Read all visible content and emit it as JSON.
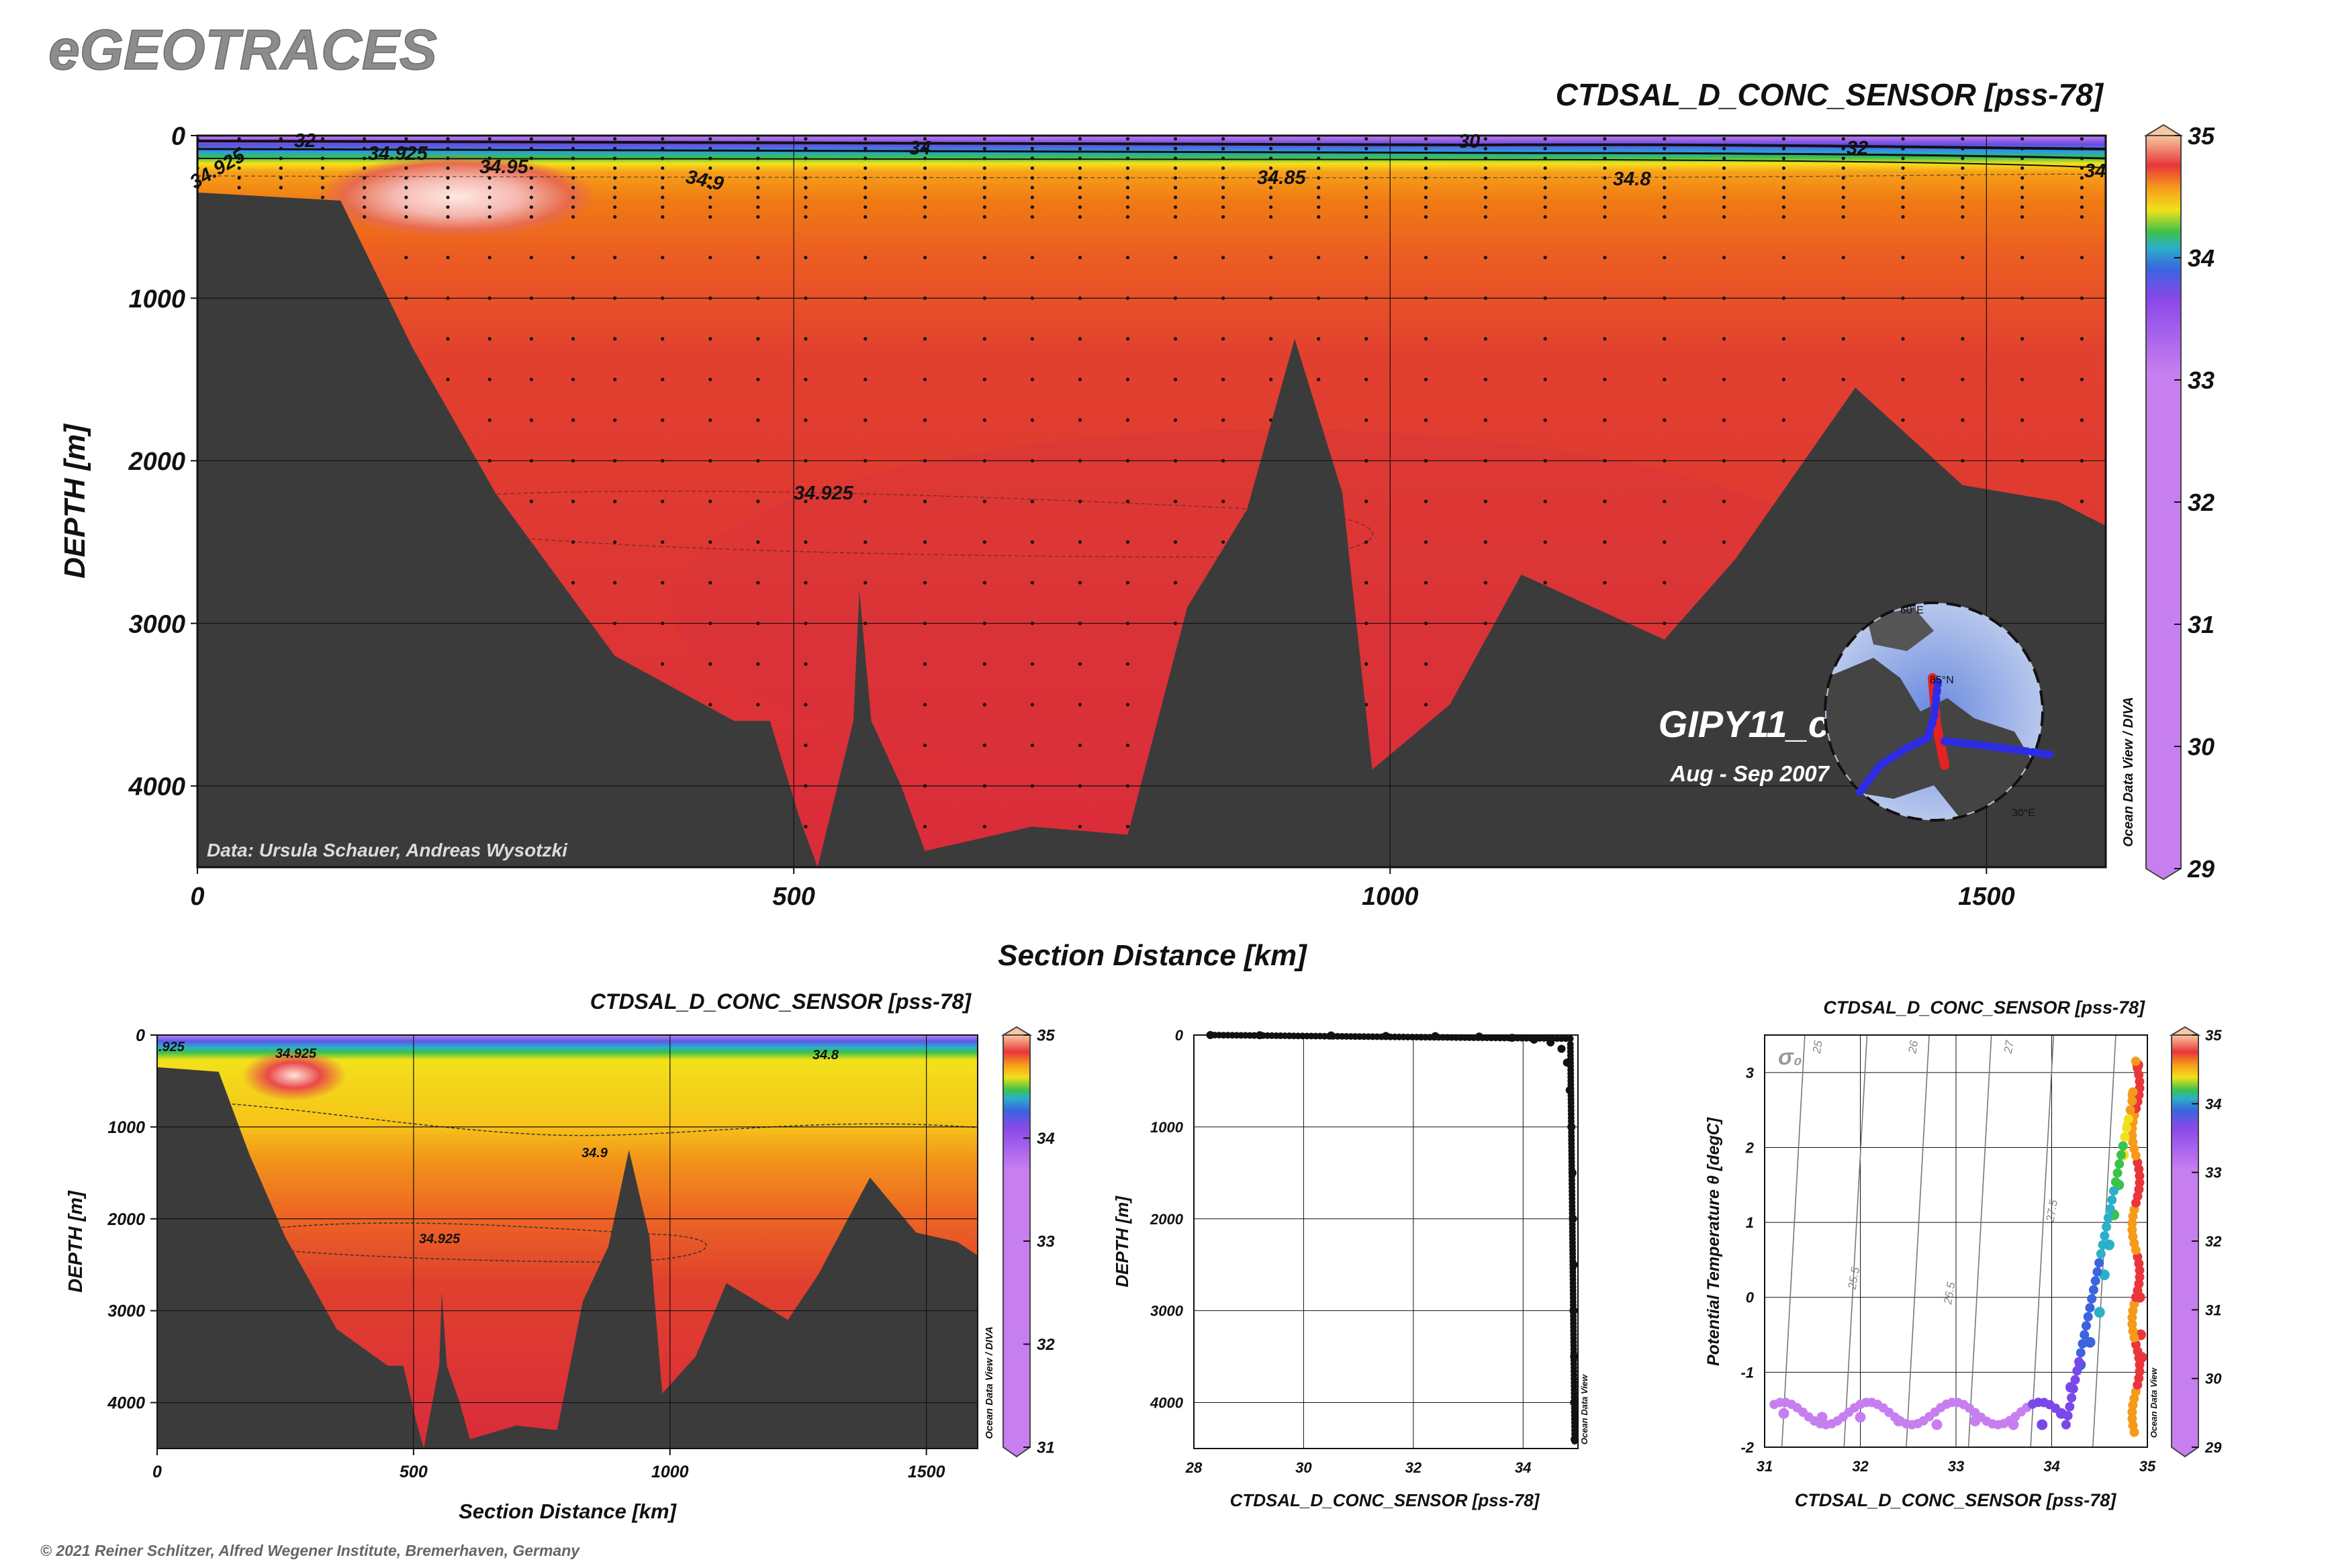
{
  "header": {
    "brand": "eGEOTRACES",
    "footer": "© 2021 Reiner Schlitzer, Alfred Wegener Institute, Bremerhaven, Germany"
  },
  "colors": {
    "terrain": "#3b3b3b",
    "deep_red": "#d92b3a",
    "orange": "#f07a14",
    "yellow": "#f6c21a",
    "purple": "#c77ff0",
    "background": "#ffffff"
  },
  "main_section": {
    "title": "CTDSAL_D_CONC_SENSOR [pss-78]",
    "ylabel": "DEPTH [m]",
    "xlabel": "Section Distance [km]",
    "yticks": [
      "0",
      "1000",
      "2000",
      "3000",
      "4000"
    ],
    "xticks": [
      "0",
      "500",
      "1000",
      "1500"
    ],
    "contour_labels": [
      "34.925",
      "34.925",
      "34.95",
      "34.9",
      "34.85",
      "34.8",
      "34.925",
      "32",
      "34",
      "30",
      "32",
      "34"
    ],
    "cruise": "GIPY11_c",
    "period": "Aug - Sep 2007",
    "credit": "Data: Ursula Schauer, Andreas Wysotzki",
    "colorbar_ticks": [
      "35",
      "34",
      "33",
      "32",
      "31",
      "30",
      "29"
    ],
    "colorbar_caption": "Ocean Data View / DIVA",
    "map_labels": [
      "85°N",
      "30°E",
      "60°E"
    ]
  },
  "small_section": {
    "title": "CTDSAL_D_CONC_SENSOR [pss-78]",
    "ylabel": "DEPTH [m]",
    "xlabel": "Section Distance [km]",
    "yticks": [
      "0",
      "1000",
      "2000",
      "3000",
      "4000"
    ],
    "xticks": [
      "0",
      "500",
      "1000",
      "1500"
    ],
    "contour_labels": [
      ".925",
      "34.925",
      "34.8",
      "34.9",
      "34.925"
    ],
    "colorbar_ticks": [
      "35",
      "34",
      "33",
      "32",
      "31"
    ],
    "colorbar_caption": "Ocean Data View / DIVA"
  },
  "profile": {
    "xlabel": "CTDSAL_D_CONC_SENSOR [pss-78]",
    "ylabel": "DEPTH [m]",
    "yticks": [
      "0",
      "1000",
      "2000",
      "3000",
      "4000"
    ],
    "xticks": [
      "28",
      "30",
      "32",
      "34"
    ],
    "caption": "Ocean Data View"
  },
  "ts_plot": {
    "title": "CTDSAL_D_CONC_SENSOR [pss-78]",
    "xlabel": "CTDSAL_D_CONC_SENSOR [pss-78]",
    "ylabel": "Potential Temperature θ [degC]",
    "yticks": [
      "3",
      "2",
      "1",
      "0",
      "-1",
      "-2"
    ],
    "xticks": [
      "31",
      "32",
      "33",
      "34",
      "35"
    ],
    "sigma_symbol": "σ₀",
    "isopycnal_labels": [
      "25",
      "26",
      "27",
      "25.5",
      "26.5",
      "27.5"
    ],
    "colorbar_ticks": [
      "35",
      "34",
      "33",
      "32",
      "31",
      "30",
      "29"
    ],
    "caption": "Ocean Data View"
  },
  "chart_data": [
    {
      "type": "heatmap",
      "title": "CTDSAL_D_CONC_SENSOR [pss-78]",
      "xlabel": "Section Distance [km]",
      "ylabel": "DEPTH [m]",
      "xlim": [
        0,
        1600
      ],
      "ylim": [
        4500,
        0
      ],
      "bathymetry": [
        [
          0,
          350
        ],
        [
          120,
          400
        ],
        [
          180,
          1300
        ],
        [
          250,
          2200
        ],
        [
          300,
          2700
        ],
        [
          350,
          3200
        ],
        [
          450,
          3600
        ],
        [
          480,
          3600
        ],
        [
          505,
          4200
        ],
        [
          520,
          4500
        ],
        [
          550,
          3600
        ],
        [
          555,
          2800
        ],
        [
          565,
          3600
        ],
        [
          590,
          4000
        ],
        [
          610,
          4400
        ],
        [
          700,
          4250
        ],
        [
          780,
          4300
        ],
        [
          830,
          2900
        ],
        [
          880,
          2300
        ],
        [
          920,
          1250
        ],
        [
          960,
          2200
        ],
        [
          985,
          3900
        ],
        [
          1050,
          3500
        ],
        [
          1110,
          2700
        ],
        [
          1230,
          3100
        ],
        [
          1290,
          2600
        ],
        [
          1390,
          1550
        ],
        [
          1480,
          2150
        ],
        [
          1560,
          2250
        ],
        [
          1600,
          2400
        ]
      ],
      "contour_levels": [
        30,
        32,
        34,
        34.8,
        34.85,
        34.9,
        34.925,
        34.95
      ],
      "colorbar_range": [
        29,
        35
      ]
    },
    {
      "type": "heatmap",
      "title": "CTDSAL_D_CONC_SENSOR [pss-78]",
      "xlabel": "Section Distance [km]",
      "ylabel": "DEPTH [m]",
      "xlim": [
        0,
        1600
      ],
      "ylim": [
        4500,
        0
      ],
      "contour_levels": [
        34.8,
        34.9,
        34.925
      ],
      "colorbar_range": [
        31,
        35
      ]
    },
    {
      "type": "scatter",
      "xlabel": "CTDSAL_D_CONC_SENSOR [pss-78]",
      "ylabel": "DEPTH [m]",
      "xlim": [
        28,
        35
      ],
      "ylim": [
        4500,
        0
      ],
      "points": [
        [
          28.3,
          0
        ],
        [
          29.2,
          2
        ],
        [
          30.5,
          5
        ],
        [
          31.5,
          10
        ],
        [
          32.4,
          12
        ],
        [
          33.2,
          16
        ],
        [
          33.8,
          30
        ],
        [
          34.2,
          50
        ],
        [
          34.5,
          80
        ],
        [
          34.7,
          150
        ],
        [
          34.8,
          300
        ],
        [
          34.85,
          600
        ],
        [
          34.88,
          1000
        ],
        [
          34.9,
          1500
        ],
        [
          34.91,
          2000
        ],
        [
          34.92,
          2500
        ],
        [
          34.92,
          3000
        ],
        [
          34.93,
          3500
        ],
        [
          34.93,
          4000
        ],
        [
          34.94,
          4400
        ]
      ]
    },
    {
      "type": "scatter",
      "title": "CTDSAL_D_CONC_SENSOR [pss-78]",
      "xlabel": "CTDSAL_D_CONC_SENSOR [pss-78]",
      "ylabel": "Potential Temperature θ [degC]",
      "xlim": [
        31,
        35
      ],
      "ylim": [
        -2,
        3.5
      ],
      "points": [
        [
          31.2,
          -1.55
        ],
        [
          31.6,
          -1.6
        ],
        [
          32.0,
          -1.6
        ],
        [
          32.4,
          -1.65
        ],
        [
          32.8,
          -1.7
        ],
        [
          33.2,
          -1.65
        ],
        [
          33.6,
          -1.7
        ],
        [
          33.9,
          -1.7
        ],
        [
          34.1,
          -1.55
        ],
        [
          34.2,
          -1.2
        ],
        [
          34.3,
          -0.9
        ],
        [
          34.4,
          -0.6
        ],
        [
          34.5,
          -0.2
        ],
        [
          34.55,
          0.3
        ],
        [
          34.6,
          0.7
        ],
        [
          34.65,
          1.1
        ],
        [
          34.7,
          1.5
        ],
        [
          34.75,
          1.9
        ],
        [
          34.8,
          2.3
        ],
        [
          34.85,
          2.7
        ],
        [
          34.9,
          3.1
        ],
        [
          34.92,
          0.0
        ],
        [
          34.93,
          -0.5
        ],
        [
          34.94,
          -0.8
        ]
      ]
    }
  ]
}
